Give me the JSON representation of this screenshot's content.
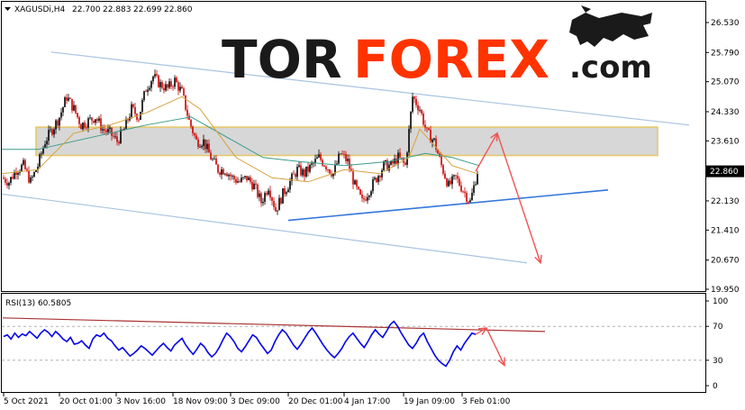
{
  "chart_header": {
    "symbol": "XAGUSDi,H4",
    "open": "22.700",
    "high": "22.883",
    "low": "22.699",
    "close": "22.860"
  },
  "logo": {
    "part1": "TOR",
    "part2": "FOREX",
    "part3": ".com"
  },
  "current_price_label": "22.860",
  "rsi_label": "RSI(13) 60.5805",
  "colors": {
    "bull_candle": "#000000",
    "bear_candle": "#cc0000",
    "ma_fast": "#d7a23c",
    "ma_slow": "#3b9b8a",
    "channel": "#a8c4e0",
    "support": "#3377dd",
    "forecast_arrow": "#ee5555",
    "resistance_zone_fill": "#c9c9c9",
    "resistance_zone_border": "#e6c766",
    "rsi_line": "#0000ee",
    "rsi_trend": "#aa3333",
    "logo_dark": "#1a1a1a",
    "logo_accent": "#ff3300"
  },
  "chart_data": [
    {
      "type": "candlestick",
      "title": "XAGUSDi,H4",
      "y_ticks": [
        "26.530",
        "25.790",
        "25.070",
        "24.330",
        "23.610",
        "22.860",
        "22.130",
        "21.410",
        "20.670",
        "19.950"
      ],
      "y_tick_values": [
        26.53,
        25.79,
        25.07,
        24.33,
        23.61,
        22.86,
        22.13,
        21.41,
        20.67,
        19.95
      ],
      "x_ticks": [
        "5 Oct 2021",
        "20 Oct 01:00",
        "3 Nov 16:00",
        "18 Nov 09:00",
        "3 Dec 09:00",
        "20 Dec 01:00",
        "4 Jan 17:00",
        "19 Jan 09:00",
        "3 Feb 01:00"
      ],
      "ylim": [
        19.95,
        26.9
      ],
      "close_path": [
        [
          0,
          22.7
        ],
        [
          8,
          22.6
        ],
        [
          16,
          22.9
        ],
        [
          24,
          23.0
        ],
        [
          32,
          22.6
        ],
        [
          40,
          23.0
        ],
        [
          48,
          23.6
        ],
        [
          56,
          23.9
        ],
        [
          64,
          24.2
        ],
        [
          72,
          24.7
        ],
        [
          80,
          24.4
        ],
        [
          88,
          24.0
        ],
        [
          96,
          24.1
        ],
        [
          104,
          24.2
        ],
        [
          112,
          23.9
        ],
        [
          120,
          23.8
        ],
        [
          128,
          23.6
        ],
        [
          136,
          23.9
        ],
        [
          144,
          24.4
        ],
        [
          152,
          24.2
        ],
        [
          160,
          24.9
        ],
        [
          168,
          25.2
        ],
        [
          176,
          25.0
        ],
        [
          184,
          24.9
        ],
        [
          192,
          25.1
        ],
        [
          200,
          24.8
        ],
        [
          208,
          24.1
        ],
        [
          216,
          23.6
        ],
        [
          224,
          23.6
        ],
        [
          232,
          23.2
        ],
        [
          240,
          22.9
        ],
        [
          248,
          22.9
        ],
        [
          256,
          22.7
        ],
        [
          264,
          22.6
        ],
        [
          272,
          22.7
        ],
        [
          280,
          22.5
        ],
        [
          288,
          22.1
        ],
        [
          296,
          22.5
        ],
        [
          304,
          21.9
        ],
        [
          312,
          22.3
        ],
        [
          320,
          22.6
        ],
        [
          328,
          22.9
        ],
        [
          336,
          22.8
        ],
        [
          344,
          23.0
        ],
        [
          352,
          23.2
        ],
        [
          360,
          23.0
        ],
        [
          368,
          22.8
        ],
        [
          376,
          23.3
        ],
        [
          384,
          23.1
        ],
        [
          392,
          22.5
        ],
        [
          400,
          22.1
        ],
        [
          408,
          22.4
        ],
        [
          416,
          22.7
        ],
        [
          424,
          23.0
        ],
        [
          432,
          23.0
        ],
        [
          440,
          23.2
        ],
        [
          448,
          23.0
        ],
        [
          456,
          24.7
        ],
        [
          464,
          24.4
        ],
        [
          472,
          23.8
        ],
        [
          480,
          23.6
        ],
        [
          488,
          23.0
        ],
        [
          496,
          22.5
        ],
        [
          504,
          22.7
        ],
        [
          512,
          22.4
        ],
        [
          520,
          22.1
        ],
        [
          528,
          22.86
        ]
      ],
      "ma_fast_path": [
        [
          0,
          22.8
        ],
        [
          40,
          22.9
        ],
        [
          80,
          23.8
        ],
        [
          120,
          24.0
        ],
        [
          160,
          24.3
        ],
        [
          200,
          24.7
        ],
        [
          220,
          24.4
        ],
        [
          260,
          23.2
        ],
        [
          300,
          22.7
        ],
        [
          340,
          22.6
        ],
        [
          380,
          22.9
        ],
        [
          420,
          22.8
        ],
        [
          452,
          23.2
        ],
        [
          464,
          23.9
        ],
        [
          480,
          23.5
        ],
        [
          500,
          23.0
        ],
        [
          528,
          22.8
        ]
      ],
      "ma_slow_path": [
        [
          0,
          23.4
        ],
        [
          40,
          23.4
        ],
        [
          80,
          23.6
        ],
        [
          120,
          23.8
        ],
        [
          160,
          24.0
        ],
        [
          210,
          24.2
        ],
        [
          250,
          23.7
        ],
        [
          290,
          23.2
        ],
        [
          330,
          23.1
        ],
        [
          380,
          23.0
        ],
        [
          430,
          23.1
        ],
        [
          470,
          23.3
        ],
        [
          500,
          23.2
        ],
        [
          530,
          23.0
        ]
      ],
      "channel_upper": [
        [
          57,
          25.8
        ],
        [
          765,
          24.0
        ]
      ],
      "channel_lower": [
        [
          2,
          22.3
        ],
        [
          585,
          20.6
        ]
      ],
      "support_line": [
        [
          320,
          21.65
        ],
        [
          675,
          22.4
        ]
      ],
      "resistance_zone": {
        "x_start": 40,
        "x_end": 730,
        "y_top": 23.95,
        "y_bottom": 23.25
      },
      "forecast": [
        [
          528,
          22.86
        ],
        [
          552,
          23.8
        ],
        [
          600,
          20.6
        ]
      ]
    },
    {
      "type": "line",
      "title": "RSI(13) 60.5805",
      "y_ticks": [
        "100",
        "70",
        "30",
        "0"
      ],
      "y_tick_values": [
        100,
        70,
        30,
        0
      ],
      "ylim": [
        0,
        100
      ],
      "values": [
        58,
        60,
        55,
        62,
        57,
        61,
        59,
        64,
        60,
        56,
        62,
        66,
        63,
        58,
        64,
        60,
        55,
        52,
        57,
        49,
        50,
        53,
        48,
        44,
        55,
        60,
        58,
        62,
        56,
        53,
        47,
        42,
        45,
        40,
        35,
        38,
        42,
        47,
        44,
        40,
        36,
        41,
        46,
        50,
        45,
        41,
        48,
        52,
        56,
        48,
        42,
        37,
        43,
        50,
        46,
        39,
        34,
        38,
        45,
        54,
        62,
        58,
        52,
        44,
        40,
        46,
        53,
        60,
        57,
        50,
        44,
        38,
        42,
        52,
        60,
        66,
        62,
        55,
        48,
        43,
        49,
        56,
        63,
        68,
        62,
        55,
        48,
        42,
        37,
        33,
        38,
        44,
        52,
        58,
        62,
        56,
        50,
        45,
        52,
        60,
        66,
        61,
        57,
        64,
        72,
        76,
        70,
        62,
        55,
        48,
        44,
        50,
        58,
        62,
        52,
        44,
        36,
        30,
        26,
        23,
        30,
        40,
        47,
        42,
        50,
        56,
        62,
        60.58
      ],
      "trend_line": [
        [
          3,
          80
        ],
        [
          605,
          64
        ]
      ],
      "forecast": [
        [
          528,
          60.58
        ],
        [
          540,
          68
        ],
        [
          560,
          24
        ]
      ]
    }
  ]
}
